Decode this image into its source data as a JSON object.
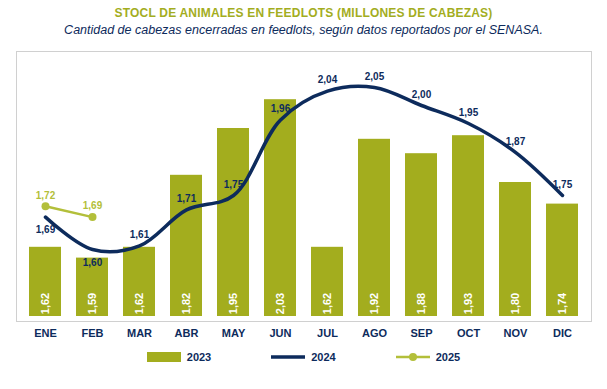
{
  "chart_data": {
    "type": "bar",
    "title": "STOCL DE ANIMALES EN FEEDLOTS (MILLONES DE CABEZAS)",
    "subtitle": "Cantidad de cabezas encerradas en feedlots, según datos reportados por el SENASA.",
    "categories": [
      "ENE",
      "FEB",
      "MAR",
      "ABR",
      "MAY",
      "JUN",
      "JUL",
      "AGO",
      "SEP",
      "OCT",
      "NOV",
      "DIC"
    ],
    "series": [
      {
        "name": "2023",
        "type": "bar",
        "color": "#a3ad1e",
        "values": [
          1.62,
          1.59,
          1.62,
          1.82,
          1.95,
          2.03,
          1.62,
          1.92,
          1.88,
          1.93,
          1.8,
          1.74
        ],
        "value_labels": [
          "1,62",
          "1,59",
          "1,62",
          "1,82",
          "1,95",
          "2,03",
          "1,62",
          "1,92",
          "1,88",
          "1,93",
          "1,80",
          "1,74"
        ]
      },
      {
        "name": "2024",
        "type": "line",
        "color": "#0d2b5c",
        "line_style": "smooth",
        "values": [
          1.69,
          1.6,
          1.61,
          1.71,
          1.75,
          1.96,
          2.04,
          2.05,
          2.0,
          1.95,
          1.87,
          1.75
        ],
        "value_labels": [
          "1,69",
          "1,60",
          "1,61",
          "1,71",
          "1,75",
          "1,96",
          "2,04",
          "2,05",
          "2,00",
          "1,95",
          "1,87",
          "1,75"
        ]
      },
      {
        "name": "2025",
        "type": "line",
        "color": "#b3bf3a",
        "marker": "circle",
        "values": [
          1.72,
          1.69,
          null,
          null,
          null,
          null,
          null,
          null,
          null,
          null,
          null,
          null
        ],
        "value_labels": [
          "1,72",
          "1,69",
          null,
          null,
          null,
          null,
          null,
          null,
          null,
          null,
          null,
          null
        ]
      }
    ],
    "ylim": [
      1.4,
      2.15
    ],
    "data_labels": true,
    "tick_labels": "x",
    "grid": false,
    "legend": "bottom"
  }
}
